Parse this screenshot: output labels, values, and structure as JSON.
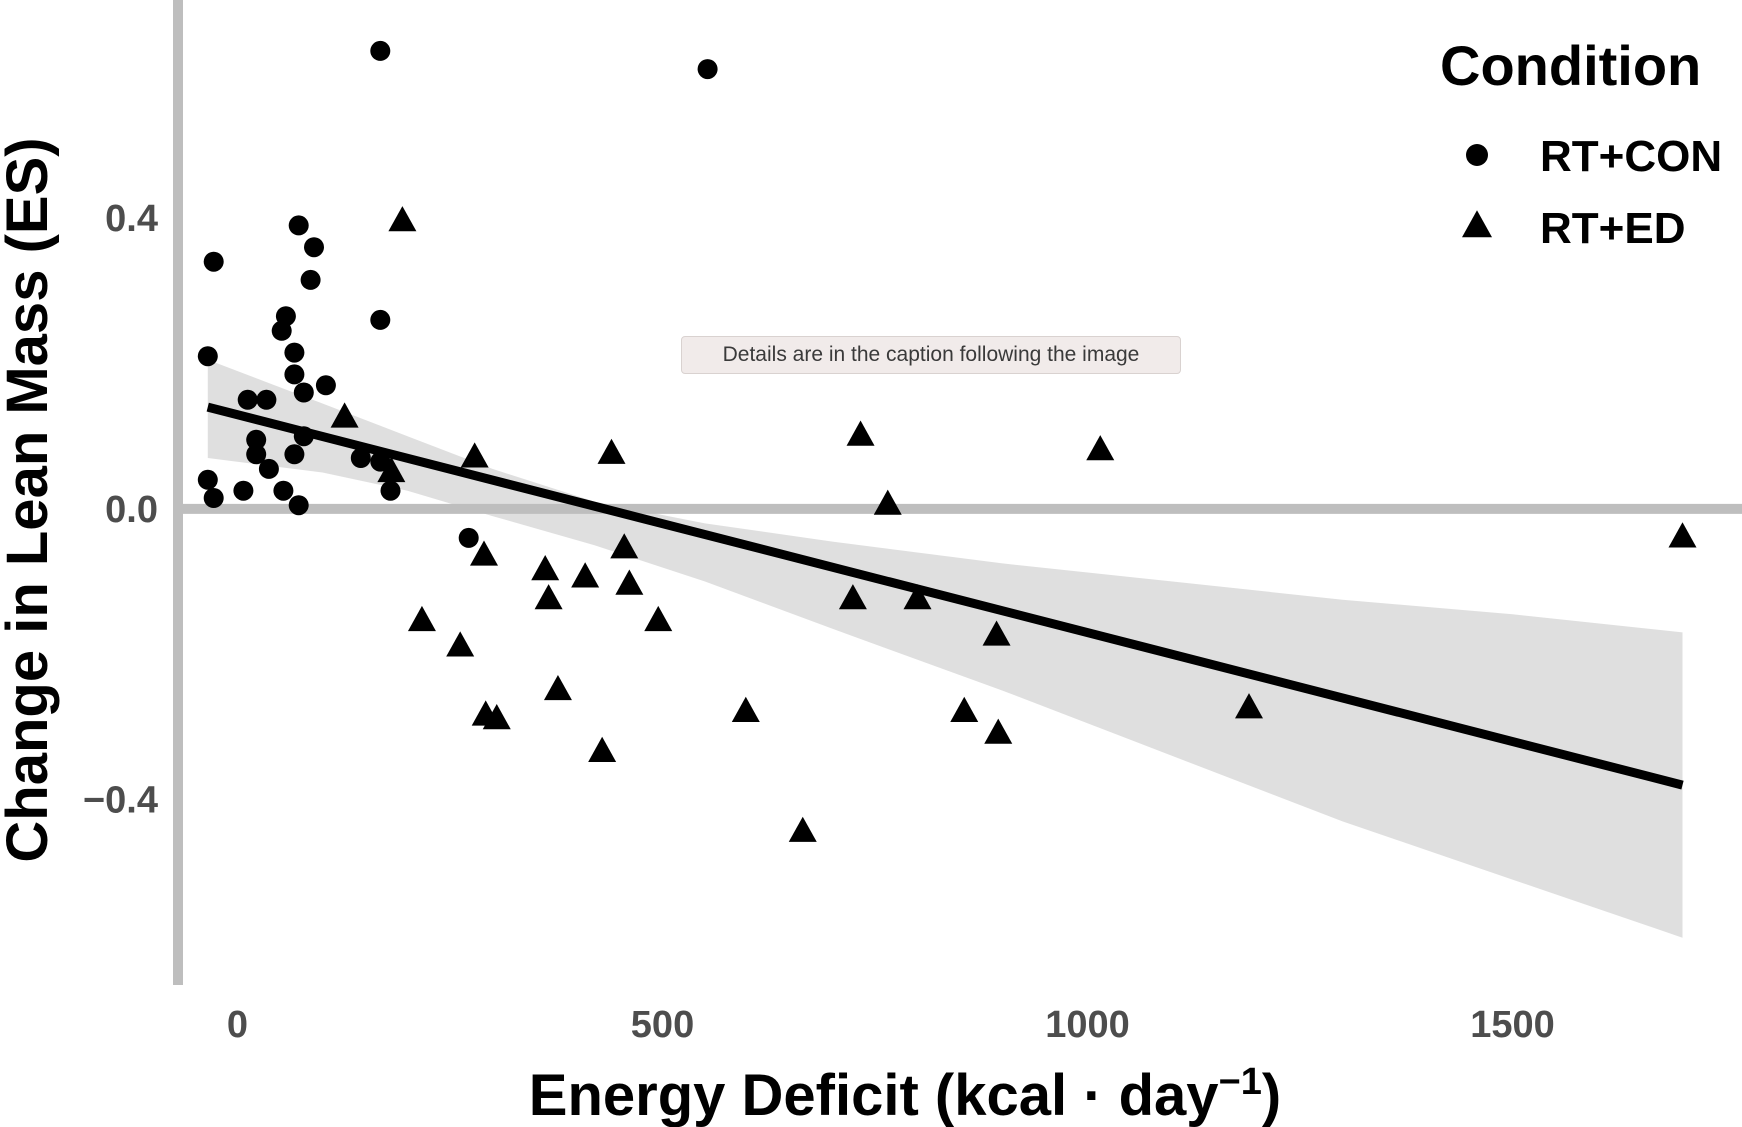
{
  "tooltip": {
    "text": "Details are in the caption following the image"
  },
  "chart_data": {
    "type": "scatter",
    "xlabel": "Energy Deficit (kcal · day",
    "xlabel_superscript": "−1",
    "xlabel_close": ")",
    "ylabel": "Change in Lean Mass (ES)",
    "xlim": [
      -70,
      1770
    ],
    "ylim": [
      -0.655,
      0.7
    ],
    "x_ticks": [
      0,
      500,
      1000,
      1500
    ],
    "x_tick_labels": [
      "0",
      "500",
      "1000",
      "1500"
    ],
    "y_ticks": [
      0.4,
      0.0,
      -0.4
    ],
    "y_tick_labels": [
      "0.4",
      "0.0",
      "−0.4"
    ],
    "grid": false,
    "reference_line_y": 0.0,
    "legend": {
      "title": "Condition",
      "position": "top-right",
      "entries": [
        {
          "name": "RT+CON",
          "shape": "circle"
        },
        {
          "name": "RT+ED",
          "shape": "triangle"
        }
      ]
    },
    "colors": {
      "points": "#000000",
      "fit_line": "#000000",
      "confidence_band": "#d9d9d9",
      "axis_lines": "#bebebe",
      "tick_labels": "#4d4d4d"
    },
    "series": [
      {
        "name": "RT+CON",
        "shape": "circle",
        "points": [
          [
            -35,
            0.21
          ],
          [
            -35,
            0.04
          ],
          [
            -28,
            0.34
          ],
          [
            -28,
            0.015
          ],
          [
            7,
            0.025
          ],
          [
            12,
            0.15
          ],
          [
            22,
            0.095
          ],
          [
            22,
            0.075
          ],
          [
            34,
            0.15
          ],
          [
            37,
            0.055
          ],
          [
            52,
            0.245
          ],
          [
            54,
            0.025
          ],
          [
            57,
            0.265
          ],
          [
            67,
            0.215
          ],
          [
            67,
            0.185
          ],
          [
            67,
            0.075
          ],
          [
            72,
            0.39
          ],
          [
            72,
            0.005
          ],
          [
            78,
            0.1
          ],
          [
            78,
            0.16
          ],
          [
            86,
            0.315
          ],
          [
            90,
            0.36
          ],
          [
            104,
            0.17
          ],
          [
            145,
            0.07
          ],
          [
            168,
            0.26
          ],
          [
            168,
            0.065
          ],
          [
            168,
            0.63
          ],
          [
            180,
            0.025
          ],
          [
            272,
            -0.04
          ],
          [
            553,
            0.605
          ]
        ]
      },
      {
        "name": "RT+ED",
        "shape": "triangle",
        "points": [
          [
            126,
            0.125
          ],
          [
            181,
            0.05
          ],
          [
            194,
            0.395
          ],
          [
            217,
            -0.155
          ],
          [
            262,
            -0.19
          ],
          [
            279,
            0.07
          ],
          [
            290,
            -0.065
          ],
          [
            292,
            -0.285
          ],
          [
            305,
            -0.29
          ],
          [
            362,
            -0.085
          ],
          [
            366,
            -0.125
          ],
          [
            377,
            -0.25
          ],
          [
            409,
            -0.095
          ],
          [
            429,
            -0.335
          ],
          [
            440,
            0.075
          ],
          [
            455,
            -0.055
          ],
          [
            461,
            -0.105
          ],
          [
            495,
            -0.155
          ],
          [
            598,
            -0.28
          ],
          [
            665,
            -0.445
          ],
          [
            724,
            -0.125
          ],
          [
            733,
            0.1
          ],
          [
            765,
            0.005
          ],
          [
            800,
            -0.125
          ],
          [
            855,
            -0.28
          ],
          [
            893,
            -0.175
          ],
          [
            895,
            -0.31
          ],
          [
            1015,
            0.08
          ],
          [
            1190,
            -0.275
          ],
          [
            1700,
            -0.04
          ]
        ]
      }
    ],
    "fit": {
      "type": "linear",
      "x_range": [
        -35,
        1700
      ],
      "y_at_start": 0.14,
      "y_at_end": -0.38,
      "ci_lower_start": 0.07,
      "ci_upper_start": 0.205,
      "ci_lower_end": -0.59,
      "ci_upper_end": -0.17,
      "ci_curve": [
        {
          "x": -35,
          "lo": 0.07,
          "hi": 0.205
        },
        {
          "x": 100,
          "lo": 0.05,
          "hi": 0.145
        },
        {
          "x": 200,
          "lo": 0.025,
          "hi": 0.1
        },
        {
          "x": 300,
          "lo": -0.01,
          "hi": 0.055
        },
        {
          "x": 420,
          "lo": -0.05,
          "hi": 0.01
        },
        {
          "x": 550,
          "lo": -0.1,
          "hi": -0.02
        },
        {
          "x": 700,
          "lo": -0.165,
          "hi": -0.045
        },
        {
          "x": 900,
          "lo": -0.25,
          "hi": -0.075
        },
        {
          "x": 1100,
          "lo": -0.34,
          "hi": -0.1
        },
        {
          "x": 1300,
          "lo": -0.43,
          "hi": -0.125
        },
        {
          "x": 1500,
          "lo": -0.51,
          "hi": -0.145
        },
        {
          "x": 1700,
          "lo": -0.59,
          "hi": -0.17
        }
      ]
    }
  }
}
